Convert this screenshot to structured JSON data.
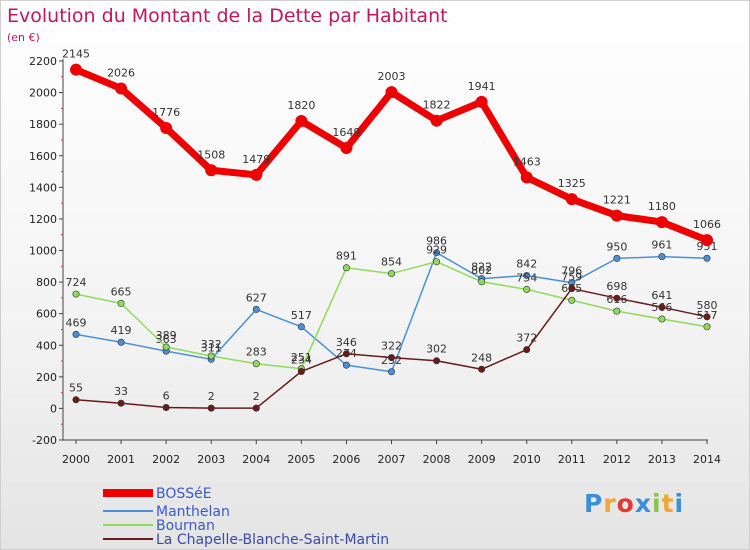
{
  "title": "Evolution du Montant de la Dette par Habitant",
  "subtitle": "(en €)",
  "logo": {
    "text": "Proxiti",
    "letters": [
      "P",
      "r",
      "o",
      "x",
      "i",
      "t",
      "i"
    ],
    "colors": [
      "#3a8fd6",
      "#f0a830",
      "#e53935",
      "#3a8fd6",
      "#8bc34a",
      "#f0a830",
      "#3a8fd6"
    ]
  },
  "chart_data": {
    "type": "line",
    "title": "Evolution du Montant de la Dette par Habitant",
    "subtitle": "(en €)",
    "xlabel": "",
    "ylabel": "",
    "ylim": [
      -200,
      2200
    ],
    "yticks": [
      -200,
      0,
      200,
      400,
      600,
      800,
      1000,
      1200,
      1400,
      1600,
      1800,
      2000,
      2200
    ],
    "grid": false,
    "legend": "bottom-left",
    "x": [
      2000,
      2001,
      2002,
      2003,
      2004,
      2005,
      2006,
      2007,
      2008,
      2009,
      2010,
      2011,
      2012,
      2013,
      2014
    ],
    "series": [
      {
        "name": "BOSSéE",
        "color": "#ee0000",
        "emphasis": true,
        "values": [
          2145,
          2026,
          1776,
          1508,
          1479,
          1820,
          1649,
          2003,
          1822,
          1941,
          1463,
          1325,
          1221,
          1180,
          1066
        ]
      },
      {
        "name": "Manthelan",
        "color": "#4a90d9",
        "emphasis": false,
        "values": [
          469,
          419,
          363,
          311,
          627,
          517,
          274,
          232,
          986,
          822,
          842,
          796,
          950,
          961,
          951
        ]
      },
      {
        "name": "Bournan",
        "color": "#8fdc5a",
        "emphasis": false,
        "values": [
          724,
          665,
          389,
          332,
          283,
          251,
          891,
          854,
          929,
          802,
          754,
          685,
          616,
          566,
          517
        ]
      },
      {
        "name": "La Chapelle-Blanche-Saint-Martin",
        "color": "#6a1a1a",
        "emphasis": false,
        "values": [
          55,
          33,
          6,
          2,
          2,
          234,
          346,
          322,
          302,
          248,
          372,
          759,
          698,
          641,
          580
        ]
      }
    ]
  }
}
